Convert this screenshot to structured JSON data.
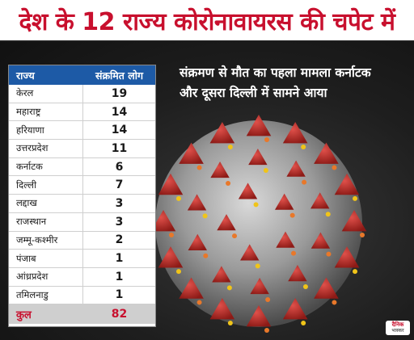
{
  "headline": "देश के 12 राज्य कोरोनावायरस की चपेट में",
  "subheadline": {
    "line1": "संक्रमण से मौत का पहला मामला कर्नाटक",
    "line2": "और दूसरा दिल्ली में सामने आया"
  },
  "table": {
    "columns": [
      "राज्य",
      "संक्रमित लोग"
    ],
    "rows": [
      {
        "state": "केरल",
        "count": "19"
      },
      {
        "state": "महाराष्ट्र",
        "count": "14"
      },
      {
        "state": "हरियाणा",
        "count": "14"
      },
      {
        "state": "उत्तरप्रदेश",
        "count": "11"
      },
      {
        "state": "कर्नाटक",
        "count": "6"
      },
      {
        "state": "दिल्ली",
        "count": "7"
      },
      {
        "state": "लद्दाख",
        "count": "3"
      },
      {
        "state": "राजस्थान",
        "count": "3"
      },
      {
        "state": "जम्मू-कश्मीर",
        "count": "2"
      },
      {
        "state": "पंजाब",
        "count": "1"
      },
      {
        "state": "आंध्रप्रदेश",
        "count": "1"
      },
      {
        "state": "तमिलनाडु",
        "count": "1"
      }
    ],
    "total": {
      "label": "कुल",
      "count": "82"
    }
  },
  "logo": {
    "line1": "दैनिक",
    "line2": "भास्कर"
  },
  "colors": {
    "accent_red": "#c8102e",
    "header_blue": "#1d5aa6"
  },
  "icons": {
    "background": "coronavirus-illustration"
  }
}
